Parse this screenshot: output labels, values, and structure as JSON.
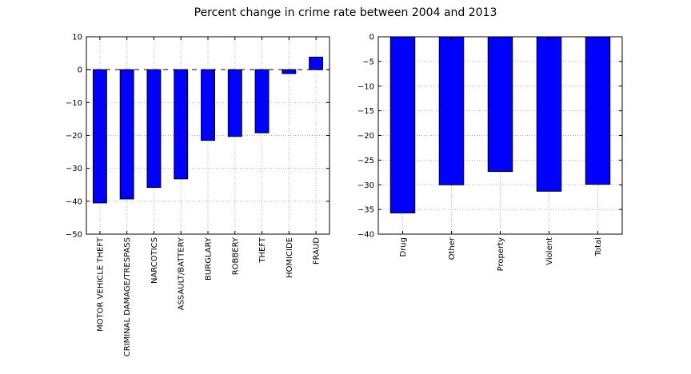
{
  "title": "Percent change in crime rate between 2004 and 2013",
  "colors": {
    "bar_fill": "#0000ff",
    "bar_edge": "#000000",
    "grid": "#b0b0b0",
    "axes": "#000000"
  },
  "chart_data": [
    {
      "type": "bar",
      "title": "",
      "xlabel": "",
      "ylabel": "",
      "categories": [
        "MOTOR VEHICLE THEFT",
        "CRIMINAL DAMAGE/TRESPASS",
        "NARCOTICS",
        "ASSAULT/BATTERY",
        "BURGLARY",
        "ROBBERY",
        "THEFT",
        "HOMICIDE",
        "FRAUD"
      ],
      "values": [
        -40.5,
        -39.3,
        -35.8,
        -33.2,
        -21.5,
        -20.3,
        -19.2,
        -1.2,
        3.8
      ],
      "ylim": [
        -50,
        10
      ],
      "yticks": [
        10,
        0,
        -10,
        -20,
        -30,
        -40,
        -50
      ],
      "grid": true,
      "zero_line": "dashed"
    },
    {
      "type": "bar",
      "title": "",
      "xlabel": "",
      "ylabel": "",
      "categories": [
        "Drug",
        "Other",
        "Property",
        "Violent",
        "Total"
      ],
      "values": [
        -35.7,
        -30.0,
        -27.3,
        -31.3,
        -29.9
      ],
      "ylim": [
        -40,
        0
      ],
      "yticks": [
        0,
        -5,
        -10,
        -15,
        -20,
        -25,
        -30,
        -35,
        -40
      ],
      "grid": true
    }
  ]
}
